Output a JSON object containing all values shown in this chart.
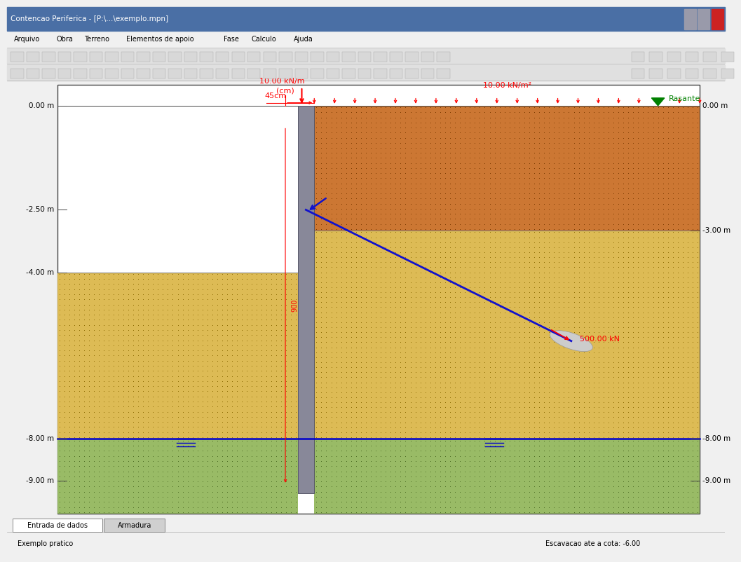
{
  "title": "Contencao Periferica - [P:\\...\\exemplo.mpn]",
  "menu_items": [
    "Arquivo",
    "Obra",
    "Terreno",
    "Elementos de apoio",
    "Fase",
    "Calculo",
    "Ajuda"
  ],
  "bg_color": "#f0f0f0",
  "canvas_bg": "#ffffff",
  "soil_top_color": "#cc7733",
  "soil_top_dot_color": "#7a3a00",
  "soil_mid_color": "#ddbb55",
  "soil_mid_dot_color": "#8a6a00",
  "soil_bot_color": "#99bb66",
  "soil_bot_dot_color": "#4a6a22",
  "wall_color": "#888899",
  "wall_edge_color": "#555566",
  "water_line_color": "#0000cc",
  "load_line_label": "10.00 kN/m",
  "load_area_label": "10.00 kN/m²",
  "rasante_label": "Rasante",
  "anchor_label": "500.00 kN",
  "bottom_label": "Escavacao ate a cota: -6.00",
  "tab1": "Entrada de dados",
  "tab2": "Armadura",
  "status": "Exemplo pratico",
  "win_blue": "#3c5a8a",
  "titlebar_color": "#4a6fa5",
  "left_scale": [
    [
      "0.00 m",
      0.0
    ],
    [
      "-2.50 m",
      -2.5
    ],
    [
      "-4.00 m",
      -4.0
    ],
    [
      "-8.00 m",
      -8.0
    ],
    [
      "-9.00 m",
      -9.0
    ]
  ],
  "right_scale": [
    [
      "0.00 m",
      0.0
    ],
    [
      "-3.00 m",
      -3.0
    ],
    [
      "-8.00 m",
      -8.0
    ],
    [
      "-9.00 m",
      -9.0
    ]
  ],
  "y_min": -9.8,
  "y_max": 0.5
}
